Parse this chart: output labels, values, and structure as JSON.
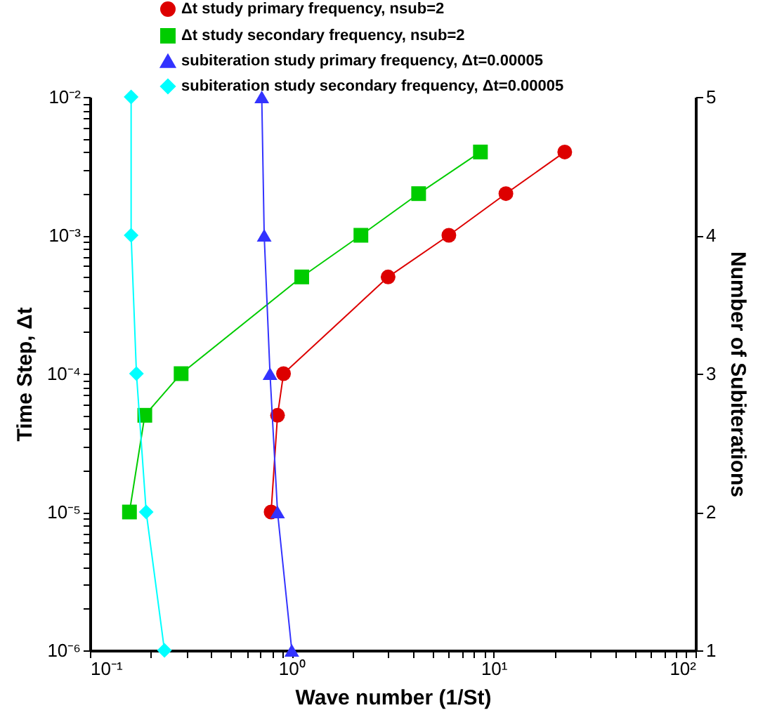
{
  "chart_data": {
    "type": "line",
    "xlabel": "Wave number (1/St)",
    "ylabel": "Time Step, Δt",
    "y2label": "Number of Subiterations",
    "log": "xy",
    "grid": false,
    "legend": "top",
    "line_style": "solid",
    "xlim": [
      0.1,
      100
    ],
    "xticks": [
      {
        "value": 0.1,
        "label": "10⁻¹"
      },
      {
        "value": 0.2,
        "label": null
      },
      {
        "value": 0.3,
        "label": null
      },
      {
        "value": 0.4,
        "label": null
      },
      {
        "value": 0.5,
        "label": null
      },
      {
        "value": 0.6,
        "label": null
      },
      {
        "value": 0.7,
        "label": null
      },
      {
        "value": 0.8,
        "label": null
      },
      {
        "value": 0.9,
        "label": null
      },
      {
        "value": 1,
        "label": "10⁰"
      },
      {
        "value": 2,
        "label": null
      },
      {
        "value": 3,
        "label": null
      },
      {
        "value": 4,
        "label": null
      },
      {
        "value": 5,
        "label": null
      },
      {
        "value": 6,
        "label": null
      },
      {
        "value": 7,
        "label": null
      },
      {
        "value": 8,
        "label": null
      },
      {
        "value": 9,
        "label": null
      },
      {
        "value": 10,
        "label": "10¹"
      },
      {
        "value": 20,
        "label": null
      },
      {
        "value": 30,
        "label": null
      },
      {
        "value": 40,
        "label": null
      },
      {
        "value": 50,
        "label": null
      },
      {
        "value": 60,
        "label": null
      },
      {
        "value": 70,
        "label": null
      },
      {
        "value": 80,
        "label": null
      },
      {
        "value": 90,
        "label": null
      },
      {
        "value": 100,
        "label": "10²"
      }
    ],
    "ylim": [
      1e-06,
      0.01
    ],
    "yticks": [
      {
        "value": 1e-06,
        "label": "10⁻⁶"
      },
      {
        "value": 2e-06,
        "label": null
      },
      {
        "value": 3e-06,
        "label": null
      },
      {
        "value": 4e-06,
        "label": null
      },
      {
        "value": 5e-06,
        "label": null
      },
      {
        "value": 6e-06,
        "label": null
      },
      {
        "value": 7e-06,
        "label": null
      },
      {
        "value": 8e-06,
        "label": null
      },
      {
        "value": 9e-06,
        "label": null
      },
      {
        "value": 1e-05,
        "label": "10⁻⁵"
      },
      {
        "value": 2e-05,
        "label": null
      },
      {
        "value": 3e-05,
        "label": null
      },
      {
        "value": 4e-05,
        "label": null
      },
      {
        "value": 5e-05,
        "label": null
      },
      {
        "value": 6e-05,
        "label": null
      },
      {
        "value": 7e-05,
        "label": null
      },
      {
        "value": 8e-05,
        "label": null
      },
      {
        "value": 9e-05,
        "label": null
      },
      {
        "value": 0.0001,
        "label": "10⁻⁴"
      },
      {
        "value": 0.0002,
        "label": null
      },
      {
        "value": 0.0003,
        "label": null
      },
      {
        "value": 0.0004,
        "label": null
      },
      {
        "value": 0.0005,
        "label": null
      },
      {
        "value": 0.0006,
        "label": null
      },
      {
        "value": 0.0007,
        "label": null
      },
      {
        "value": 0.0008,
        "label": null
      },
      {
        "value": 0.0009,
        "label": null
      },
      {
        "value": 0.001,
        "label": "10⁻³"
      },
      {
        "value": 0.002,
        "label": null
      },
      {
        "value": 0.003,
        "label": null
      },
      {
        "value": 0.004,
        "label": null
      },
      {
        "value": 0.005,
        "label": null
      },
      {
        "value": 0.006,
        "label": null
      },
      {
        "value": 0.007,
        "label": null
      },
      {
        "value": 0.008,
        "label": null
      },
      {
        "value": 0.009,
        "label": null
      },
      {
        "value": 0.01,
        "label": "10⁻²"
      }
    ],
    "y2lim": [
      1,
      5
    ],
    "y2ticks": [
      1,
      2,
      3,
      4,
      5
    ],
    "series": [
      {
        "name": "Δt study primary frequency, nsub=2",
        "color": "#dd0000",
        "marker": "circle",
        "x": [
          0.79,
          0.85,
          0.91,
          3,
          6,
          11.5,
          22.5
        ],
        "values": [
          1e-05,
          5e-05,
          0.0001,
          0.0005,
          0.001,
          0.002,
          0.004
        ]
      },
      {
        "name": "Δt study secondary frequency, nsub=2",
        "color": "#00cc00",
        "marker": "square",
        "x": [
          0.157,
          0.187,
          0.283,
          1.12,
          2.2,
          4.25,
          8.6
        ],
        "values": [
          1e-05,
          5e-05,
          0.0001,
          0.0005,
          0.001,
          0.002,
          0.004
        ]
      },
      {
        "name": "subiteration study primary frequency, Δt=0.00005",
        "color": "#3333ff",
        "marker": "triangle",
        "axis": "y2",
        "x": [
          0.71,
          0.73,
          0.78,
          0.85,
          1
        ],
        "values": [
          5,
          4,
          3,
          2,
          1
        ]
      },
      {
        "name": "subiteration study secondary frequency, Δt=0.00005",
        "color": "#00ffff",
        "marker": "diamond",
        "axis": "y2",
        "x": [
          0.16,
          0.16,
          0.17,
          0.19,
          0.234
        ],
        "values": [
          5,
          4,
          3,
          2,
          1
        ]
      }
    ]
  }
}
